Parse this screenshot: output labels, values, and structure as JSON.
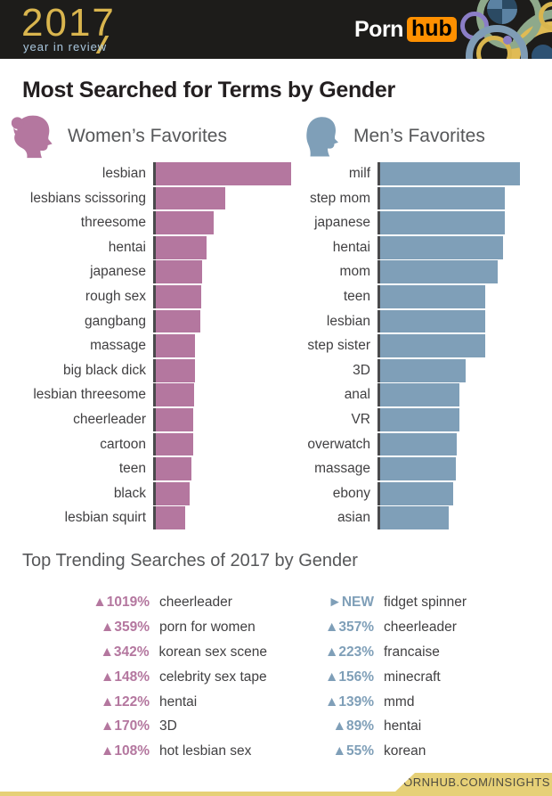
{
  "header": {
    "logo_year": "2017",
    "logo_subtitle": "year in review",
    "brand_word": "Porn",
    "brand_badge": "hub"
  },
  "page_title": "Most Searched for Terms by Gender",
  "sections": {
    "women_label": "Women’s Favorites",
    "men_label": "Men’s Favorites"
  },
  "chart_data": [
    {
      "type": "bar",
      "orientation": "horizontal",
      "title": "Women's Favorites",
      "color": "#b4779f",
      "unit": "relative search volume (top term = 100)",
      "categories": [
        "lesbian",
        "lesbians scissoring",
        "threesome",
        "hentai",
        "japanese",
        "rough sex",
        "gangbang",
        "massage",
        "big black dick",
        "lesbian threesome",
        "cheerleader",
        "cartoon",
        "teen",
        "black",
        "lesbian squirt"
      ],
      "values": [
        100,
        51,
        43,
        37.5,
        34,
        33.5,
        33,
        29,
        29,
        28.5,
        27.5,
        27.5,
        26.5,
        25,
        22
      ],
      "xlim": [
        0,
        100
      ],
      "grid": false,
      "legend": "none"
    },
    {
      "type": "bar",
      "orientation": "horizontal",
      "title": "Men's Favorites",
      "color": "#7f9fb8",
      "unit": "relative search volume (top term = 100)",
      "categories": [
        "milf",
        "step mom",
        "japanese",
        "hentai",
        "mom",
        "teen",
        "lesbian",
        "step sister",
        "3D",
        "anal",
        "VR",
        "overwatch",
        "massage",
        "ebony",
        "asian"
      ],
      "values": [
        100,
        89,
        89,
        88,
        84,
        75,
        75,
        75,
        61,
        57,
        57,
        55,
        54,
        52,
        49
      ],
      "xlim": [
        0,
        100
      ],
      "grid": false,
      "legend": "none"
    }
  ],
  "trending": {
    "title": "Top Trending Searches of 2017 by Gender",
    "women": {
      "color": "#b4779f",
      "items": [
        {
          "delta": "▲1019%",
          "term": "cheerleader"
        },
        {
          "delta": "▲359%",
          "term": "porn for women"
        },
        {
          "delta": "▲342%",
          "term": "korean sex scene"
        },
        {
          "delta": "▲148%",
          "term": "celebrity sex tape"
        },
        {
          "delta": "▲122%",
          "term": "hentai"
        },
        {
          "delta": "▲170%",
          "term": "3D"
        },
        {
          "delta": "▲108%",
          "term": "hot lesbian sex"
        }
      ]
    },
    "men": {
      "color": "#7f9fb8",
      "items": [
        {
          "delta": "►NEW",
          "term": "fidget spinner"
        },
        {
          "delta": "▲357%",
          "term": "cheerleader"
        },
        {
          "delta": "▲223%",
          "term": "francaise"
        },
        {
          "delta": "▲156%",
          "term": "minecraft"
        },
        {
          "delta": "▲139%",
          "term": "mmd"
        },
        {
          "delta": "▲89%",
          "term": "hentai"
        },
        {
          "delta": "▲55%",
          "term": "korean"
        }
      ]
    }
  },
  "footer": {
    "link_label": "PORNHUB.COM/INSIGHTS"
  },
  "colors": {
    "women_accent": "#b4779f",
    "men_accent": "#7f9fb8",
    "header_bg": "#1d1c1a",
    "gold": "#e6d077",
    "logo_gold": "#d9b54e",
    "orange": "#ff9000",
    "subtitle_blue": "#a9c7de",
    "title_text": "#231f20",
    "body_text": "#414042",
    "muted_text": "#565759"
  }
}
